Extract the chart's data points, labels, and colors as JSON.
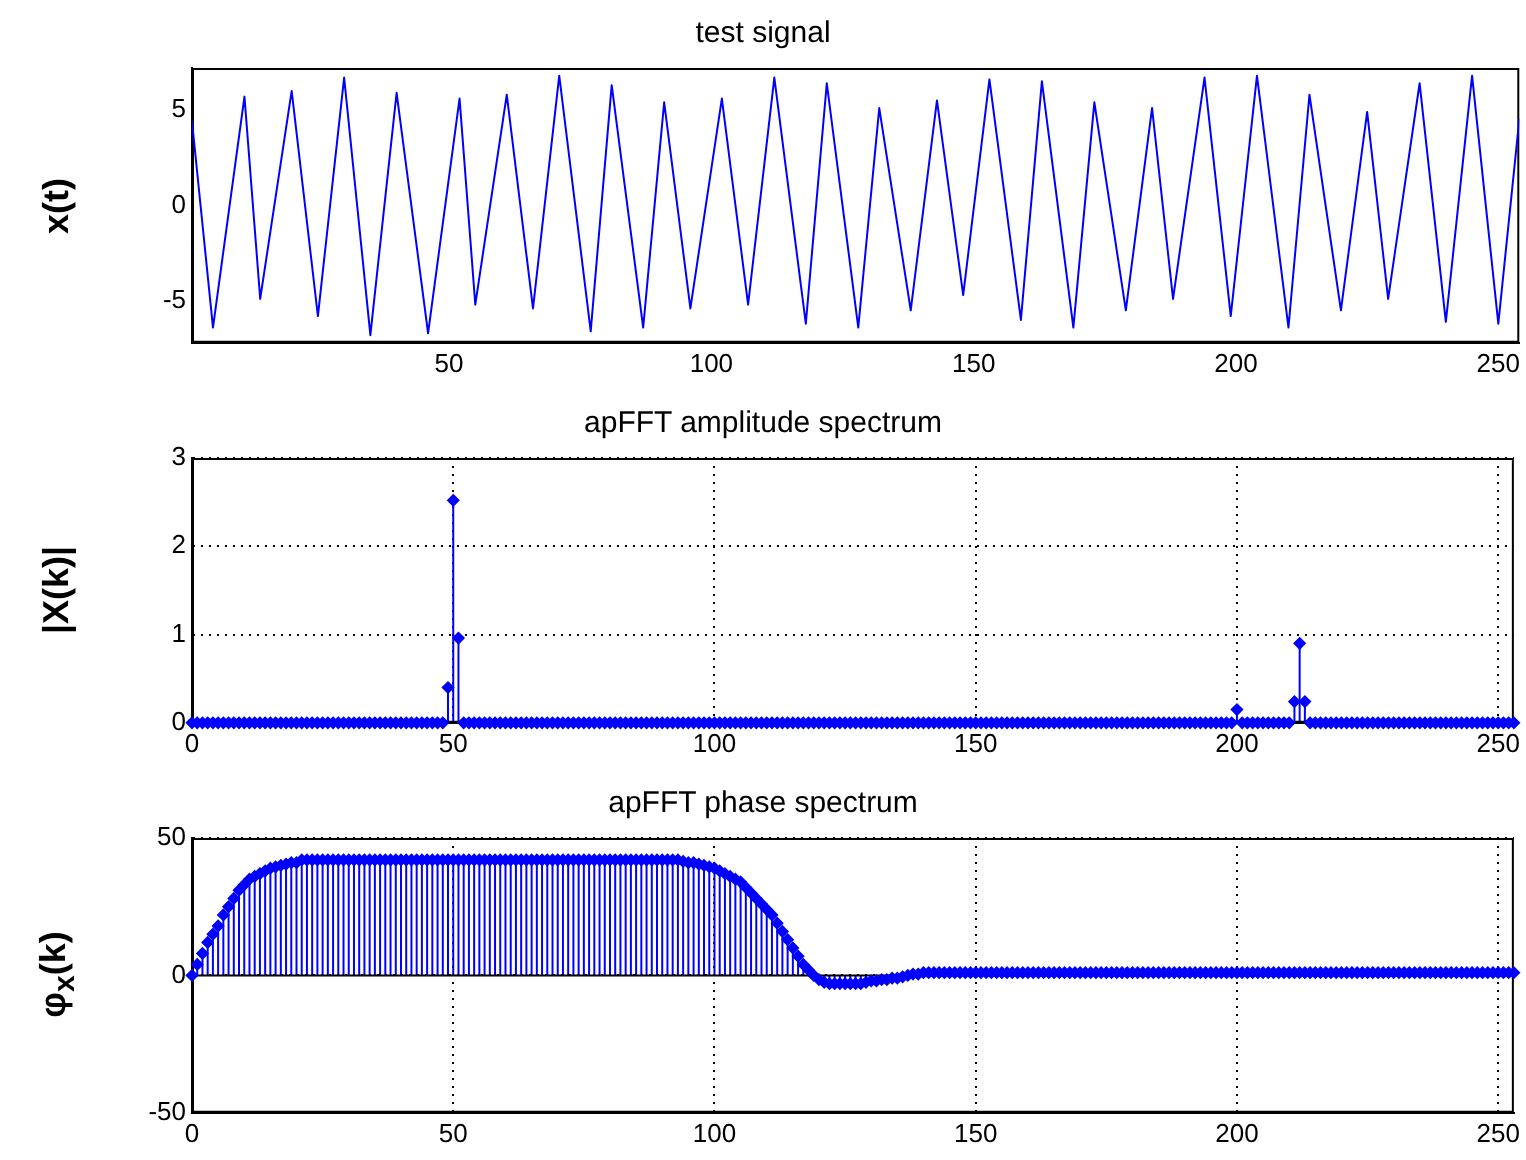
{
  "chart_data": [
    {
      "type": "line",
      "title": "test signal",
      "ylabel": "x(t)",
      "xlim": [
        1,
        254
      ],
      "ylim": [
        -7.2,
        7.2
      ],
      "xticks": [
        50,
        100,
        150,
        200,
        250
      ],
      "yticks": [
        -5,
        0,
        5
      ],
      "grid": false,
      "marker": "none",
      "line_style": "solid",
      "series": [
        {
          "color": "#0000ff",
          "x": [
            1,
            5,
            11,
            14,
            20,
            25,
            30,
            35,
            40,
            46,
            52,
            55,
            61,
            66,
            71,
            77,
            81,
            87,
            91,
            96,
            102,
            107,
            112,
            118,
            122,
            128,
            132,
            138,
            143,
            148,
            153,
            159,
            163,
            169,
            173,
            179,
            184,
            188,
            194,
            199,
            204,
            210,
            214,
            220,
            225,
            229,
            235,
            240,
            245,
            250,
            254
          ],
          "values": [
            4.4,
            -6.4,
            5.7,
            -4.9,
            6.0,
            -5.8,
            6.7,
            -6.8,
            5.9,
            -6.7,
            5.6,
            -5.2,
            5.8,
            -5.4,
            6.8,
            -6.6,
            6.3,
            -6.4,
            5.4,
            -5.4,
            5.6,
            -5.2,
            6.7,
            -6.2,
            6.4,
            -6.4,
            5.1,
            -5.5,
            5.5,
            -4.7,
            6.6,
            -6.0,
            6.5,
            -6.4,
            5.4,
            -5.5,
            5.1,
            -4.9,
            6.7,
            -5.8,
            6.8,
            -6.4,
            5.8,
            -5.5,
            4.9,
            -4.9,
            6.4,
            -6.1,
            6.8,
            -6.2,
            4.5
          ]
        }
      ]
    },
    {
      "type": "lollipop",
      "title": "apFFT amplitude spectrum",
      "ylabel": "|X(k)|",
      "xlim": [
        0,
        253
      ],
      "ylim": [
        0,
        3
      ],
      "xticks": [
        0,
        50,
        100,
        150,
        200,
        250
      ],
      "yticks": [
        0,
        1,
        2,
        3
      ],
      "grid": true,
      "marker": "diamond",
      "series": [
        {
          "color": "#0000ff",
          "x": [
            0,
            1,
            2,
            3,
            4,
            5,
            6,
            7,
            8,
            9,
            10,
            11,
            12,
            13,
            14,
            15,
            16,
            17,
            18,
            19,
            20,
            21,
            22,
            23,
            24,
            25,
            26,
            27,
            28,
            29,
            30,
            31,
            32,
            33,
            34,
            35,
            36,
            37,
            38,
            39,
            40,
            41,
            42,
            43,
            44,
            45,
            46,
            47,
            48,
            49,
            50,
            51,
            52,
            53,
            54,
            55,
            56,
            57,
            58,
            59,
            60,
            61,
            62,
            63,
            64,
            65,
            66,
            67,
            68,
            69,
            70,
            71,
            72,
            73,
            74,
            75,
            76,
            77,
            78,
            79,
            80,
            81,
            82,
            83,
            84,
            85,
            86,
            87,
            88,
            89,
            90,
            91,
            92,
            93,
            94,
            95,
            96,
            97,
            98,
            99,
            100,
            101,
            102,
            103,
            104,
            105,
            106,
            107,
            108,
            109,
            110,
            111,
            112,
            113,
            114,
            115,
            116,
            117,
            118,
            119,
            120,
            121,
            122,
            123,
            124,
            125,
            126,
            127,
            128,
            129,
            130,
            131,
            132,
            133,
            134,
            135,
            136,
            137,
            138,
            139,
            140,
            141,
            142,
            143,
            144,
            145,
            146,
            147,
            148,
            149,
            150,
            151,
            152,
            153,
            154,
            155,
            156,
            157,
            158,
            159,
            160,
            161,
            162,
            163,
            164,
            165,
            166,
            167,
            168,
            169,
            170,
            171,
            172,
            173,
            174,
            175,
            176,
            177,
            178,
            179,
            180,
            181,
            182,
            183,
            184,
            185,
            186,
            187,
            188,
            189,
            190,
            191,
            192,
            193,
            194,
            195,
            196,
            197,
            198,
            199,
            200,
            201,
            202,
            203,
            204,
            205,
            206,
            207,
            208,
            209,
            210,
            211,
            212,
            213,
            214,
            215,
            216,
            217,
            218,
            219,
            220,
            221,
            222,
            223,
            224,
            225,
            226,
            227,
            228,
            229,
            230,
            231,
            232,
            233,
            234,
            235,
            236,
            237,
            238,
            239,
            240,
            241,
            242,
            243,
            244,
            245,
            246,
            247,
            248,
            249,
            250,
            251,
            252,
            253
          ],
          "values": [
            0,
            0,
            0,
            0,
            0,
            0,
            0,
            0,
            0,
            0,
            0,
            0,
            0,
            0,
            0,
            0,
            0,
            0,
            0,
            0,
            0,
            0,
            0,
            0,
            0,
            0,
            0,
            0,
            0,
            0,
            0,
            0,
            0,
            0,
            0,
            0,
            0,
            0,
            0,
            0,
            0,
            0,
            0,
            0,
            0,
            0,
            0,
            0,
            0,
            0.4,
            2.52,
            0.96,
            0,
            0,
            0,
            0,
            0,
            0,
            0,
            0,
            0,
            0,
            0,
            0,
            0,
            0,
            0,
            0,
            0,
            0,
            0,
            0,
            0,
            0,
            0,
            0,
            0,
            0,
            0,
            0,
            0,
            0,
            0,
            0,
            0,
            0,
            0,
            0,
            0,
            0,
            0,
            0,
            0,
            0,
            0,
            0,
            0,
            0,
            0,
            0,
            0,
            0,
            0,
            0,
            0,
            0,
            0,
            0,
            0,
            0,
            0,
            0,
            0,
            0,
            0,
            0,
            0,
            0,
            0,
            0,
            0,
            0,
            0,
            0,
            0,
            0,
            0,
            0,
            0,
            0,
            0,
            0,
            0,
            0,
            0,
            0,
            0,
            0,
            0,
            0,
            0,
            0,
            0,
            0,
            0,
            0,
            0,
            0,
            0,
            0,
            0,
            0,
            0,
            0,
            0,
            0,
            0,
            0,
            0,
            0,
            0,
            0,
            0,
            0,
            0,
            0,
            0,
            0,
            0,
            0,
            0,
            0,
            0,
            0,
            0,
            0,
            0,
            0,
            0,
            0,
            0,
            0,
            0,
            0,
            0,
            0,
            0,
            0,
            0,
            0,
            0,
            0,
            0,
            0,
            0,
            0,
            0,
            0,
            0,
            0,
            0.15,
            0,
            0,
            0,
            0,
            0,
            0,
            0,
            0,
            0,
            0,
            0.24,
            0.9,
            0.24,
            0,
            0,
            0,
            0,
            0,
            0,
            0,
            0,
            0,
            0,
            0,
            0,
            0,
            0,
            0,
            0,
            0,
            0,
            0,
            0,
            0,
            0,
            0,
            0,
            0,
            0,
            0,
            0,
            0,
            0,
            0,
            0,
            0,
            0,
            0,
            0,
            0,
            0,
            0,
            0
          ]
        }
      ]
    },
    {
      "type": "lollipop",
      "title": "apFFT phase spectrum",
      "ylabel": "φ$_{x}$(k)",
      "xlim": [
        0,
        253
      ],
      "ylim": [
        -50,
        50
      ],
      "xticks": [
        0,
        50,
        100,
        150,
        200,
        250
      ],
      "yticks": [
        -50,
        0,
        50
      ],
      "grid": true,
      "marker": "diamond",
      "series": [
        {
          "color": "#0000ff",
          "x": [
            0,
            1,
            2,
            3,
            4,
            5,
            6,
            7,
            8,
            9,
            10,
            11,
            12,
            13,
            14,
            15,
            16,
            17,
            18,
            19,
            20,
            21,
            22,
            23,
            24,
            25,
            26,
            27,
            28,
            29,
            30,
            31,
            32,
            33,
            34,
            35,
            36,
            37,
            38,
            39,
            40,
            41,
            42,
            43,
            44,
            45,
            46,
            47,
            48,
            49,
            50,
            51,
            52,
            53,
            54,
            55,
            56,
            57,
            58,
            59,
            60,
            61,
            62,
            63,
            64,
            65,
            66,
            67,
            68,
            69,
            70,
            71,
            72,
            73,
            74,
            75,
            76,
            77,
            78,
            79,
            80,
            81,
            82,
            83,
            84,
            85,
            86,
            87,
            88,
            89,
            90,
            91,
            92,
            93,
            94,
            95,
            96,
            97,
            98,
            99,
            100,
            101,
            102,
            103,
            104,
            105,
            106,
            107,
            108,
            109,
            110,
            111,
            112,
            113,
            114,
            115,
            116,
            117,
            118,
            119,
            120,
            121,
            122,
            123,
            124,
            125,
            126,
            127,
            128,
            129,
            130,
            131,
            132,
            133,
            134,
            135,
            136,
            137,
            138,
            139,
            140,
            141,
            142,
            143,
            144,
            145,
            146,
            147,
            148,
            149,
            150,
            151,
            152,
            153,
            154,
            155,
            156,
            157,
            158,
            159,
            160,
            161,
            162,
            163,
            164,
            165,
            166,
            167,
            168,
            169,
            170,
            171,
            172,
            173,
            174,
            175,
            176,
            177,
            178,
            179,
            180,
            181,
            182,
            183,
            184,
            185,
            186,
            187,
            188,
            189,
            190,
            191,
            192,
            193,
            194,
            195,
            196,
            197,
            198,
            199,
            200,
            201,
            202,
            203,
            204,
            205,
            206,
            207,
            208,
            209,
            210,
            211,
            212,
            213,
            214,
            215,
            216,
            217,
            218,
            219,
            220,
            221,
            222,
            223,
            224,
            225,
            226,
            227,
            228,
            229,
            230,
            231,
            232,
            233,
            234,
            235,
            236,
            237,
            238,
            239,
            240,
            241,
            242,
            243,
            244,
            245,
            246,
            247,
            248,
            249,
            250,
            251,
            252,
            253
          ],
          "values": [
            0,
            4,
            8,
            12,
            15,
            18,
            22,
            25,
            28,
            31,
            33,
            35,
            36,
            37,
            38,
            39,
            39.5,
            40,
            40.5,
            41,
            41,
            42,
            42,
            42,
            42,
            42,
            42,
            42,
            42,
            42,
            42,
            42,
            42,
            42,
            42,
            42,
            42,
            42,
            42,
            42,
            42,
            42,
            42,
            42,
            42,
            42,
            42,
            42,
            42,
            42,
            42,
            42,
            42,
            42,
            42,
            42,
            42,
            42,
            42,
            42,
            42,
            42,
            42,
            42,
            42,
            42,
            42,
            42,
            42,
            42,
            42,
            42,
            42,
            42,
            42,
            42,
            42,
            42,
            42,
            42,
            42,
            42,
            42,
            42,
            42,
            42,
            42,
            42,
            42,
            42,
            42,
            42,
            42,
            42,
            41.5,
            41,
            41,
            40.5,
            40,
            39.5,
            39,
            38,
            37,
            36,
            35,
            34,
            32,
            30,
            28,
            26,
            24,
            22,
            19,
            16,
            13,
            10,
            7,
            4,
            2,
            0,
            -1.5,
            -2.5,
            -3,
            -3,
            -3,
            -3,
            -3,
            -3,
            -3,
            -2.5,
            -2,
            -2,
            -1.5,
            -1.5,
            -1,
            -1,
            -0.5,
            0,
            0.5,
            0.5,
            1,
            1,
            1,
            1,
            1,
            1,
            1,
            1,
            1,
            1,
            1,
            1,
            1,
            1,
            1,
            1,
            1,
            1,
            1,
            1,
            1,
            1,
            1,
            1,
            1,
            1,
            1,
            1,
            1,
            1,
            1,
            1,
            1,
            1,
            1,
            1,
            1,
            1,
            1,
            1,
            1,
            1,
            1,
            1,
            1,
            1,
            1,
            1,
            1,
            1,
            1,
            1,
            1,
            1,
            1,
            1,
            1,
            1,
            1,
            1,
            1,
            1,
            1,
            1,
            1,
            1,
            1,
            1,
            1,
            1,
            1,
            1,
            1,
            1,
            1,
            1,
            1,
            1,
            1,
            1,
            1,
            1,
            1,
            1,
            1,
            1,
            1,
            1,
            1,
            1,
            1,
            1,
            1,
            1,
            1,
            1,
            1,
            1,
            1,
            1,
            1,
            1,
            1,
            1,
            1,
            1,
            1,
            1,
            1,
            1,
            1,
            1,
            1,
            1
          ]
        }
      ]
    }
  ]
}
